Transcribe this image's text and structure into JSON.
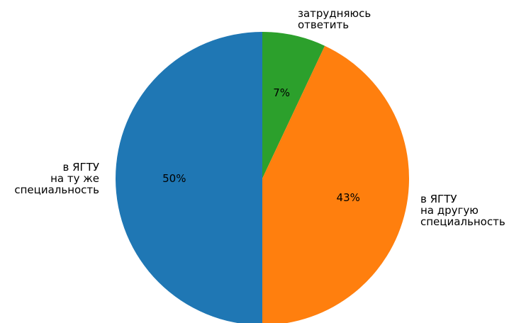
{
  "chart_data": {
    "type": "pie",
    "title": "",
    "slices": [
      {
        "label_lines": [
          "затрудняюсь",
          "ответить"
        ],
        "value": 7,
        "pct_label": "7%",
        "color": "#2ca02c"
      },
      {
        "label_lines": [
          "в ЯГТУ",
          "на другую",
          "специальность"
        ],
        "value": 43,
        "pct_label": "43%",
        "color": "#ff7f0e"
      },
      {
        "label_lines": [
          "в ЯГТУ",
          "на ту же",
          "специальность"
        ],
        "value": 50,
        "pct_label": "50%",
        "color": "#1f77b4"
      }
    ],
    "start_angle": "top (12 o'clock)",
    "direction": "clockwise",
    "legend": "none"
  }
}
